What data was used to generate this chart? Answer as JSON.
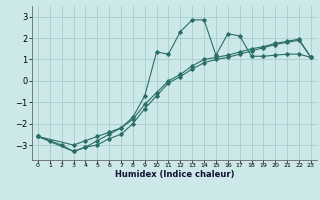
{
  "title": "",
  "xlabel": "Humidex (Indice chaleur)",
  "bg_color": "#cce8e8",
  "grid_color": "#aacccc",
  "line_color": "#2a6e68",
  "xlim": [
    -0.5,
    23.5
  ],
  "ylim": [
    -3.7,
    3.5
  ],
  "xticks": [
    0,
    1,
    2,
    3,
    4,
    5,
    6,
    7,
    8,
    9,
    10,
    11,
    12,
    13,
    14,
    15,
    16,
    17,
    18,
    19,
    20,
    21,
    22,
    23
  ],
  "yticks": [
    -3,
    -2,
    -1,
    0,
    1,
    2,
    3
  ],
  "line1_x": [
    0,
    1,
    2,
    3,
    4,
    5,
    6,
    7,
    8,
    9,
    10,
    11,
    12,
    13,
    14,
    15,
    16,
    17,
    18,
    19,
    20,
    21,
    22,
    23
  ],
  "line1_y": [
    -2.6,
    -2.8,
    -3.0,
    -3.3,
    -3.1,
    -2.8,
    -2.5,
    -2.2,
    -1.7,
    -0.7,
    1.35,
    1.25,
    2.3,
    2.85,
    2.85,
    1.2,
    2.2,
    2.1,
    1.15,
    1.15,
    1.2,
    1.25,
    1.25,
    1.1
  ],
  "line2_x": [
    0,
    3,
    4,
    5,
    6,
    7,
    8,
    9,
    10,
    11,
    12,
    13,
    14,
    15,
    16,
    17,
    18,
    19,
    20,
    21,
    22,
    23
  ],
  "line2_y": [
    -2.6,
    -3.0,
    -2.8,
    -2.6,
    -2.4,
    -2.2,
    -1.8,
    -1.1,
    -0.55,
    0.0,
    0.3,
    0.7,
    1.0,
    1.1,
    1.2,
    1.35,
    1.5,
    1.6,
    1.75,
    1.85,
    1.95,
    1.1
  ],
  "line3_x": [
    0,
    3,
    4,
    5,
    6,
    7,
    8,
    9,
    10,
    11,
    12,
    13,
    14,
    15,
    16,
    17,
    18,
    19,
    20,
    21,
    22,
    23
  ],
  "line3_y": [
    -2.6,
    -3.3,
    -3.1,
    -3.0,
    -2.7,
    -2.5,
    -2.0,
    -1.3,
    -0.7,
    -0.1,
    0.2,
    0.55,
    0.85,
    1.0,
    1.1,
    1.25,
    1.4,
    1.55,
    1.7,
    1.8,
    1.9,
    1.1
  ]
}
